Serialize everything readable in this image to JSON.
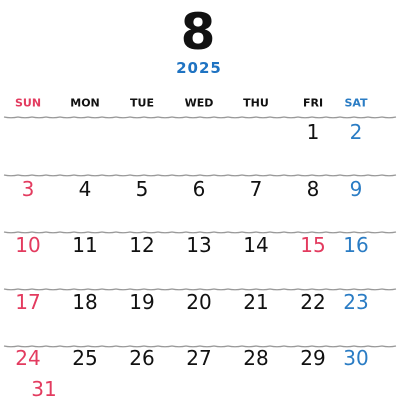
{
  "header": {
    "month": "8",
    "year": "2025"
  },
  "weekdays": [
    {
      "text": "SUN",
      "color": "#e33b5f"
    },
    {
      "text": "MON"
    },
    {
      "text": "TUE"
    },
    {
      "text": "WED"
    },
    {
      "text": "THU"
    },
    {
      "text": "FRI"
    },
    {
      "text": "SAT",
      "color": "#2a7cc4"
    }
  ],
  "weeks": [
    [
      null,
      null,
      null,
      null,
      null,
      {
        "text": "1"
      },
      {
        "text": "2",
        "color": "#2a7cc4"
      }
    ],
    [
      {
        "text": "3",
        "color": "#e33b5f"
      },
      {
        "text": "4"
      },
      {
        "text": "5"
      },
      {
        "text": "6"
      },
      {
        "text": "7"
      },
      {
        "text": "8"
      },
      {
        "text": "9",
        "color": "#2a7cc4"
      }
    ],
    [
      {
        "text": "10",
        "color": "#e33b5f"
      },
      {
        "text": "11"
      },
      {
        "text": "12"
      },
      {
        "text": "13"
      },
      {
        "text": "14"
      },
      {
        "text": "15",
        "color": "#e33b5f"
      },
      {
        "text": "16",
        "color": "#2a7cc4"
      }
    ],
    [
      {
        "text": "17",
        "color": "#e33b5f"
      },
      {
        "text": "18"
      },
      {
        "text": "19"
      },
      {
        "text": "20"
      },
      {
        "text": "21"
      },
      {
        "text": "22"
      },
      {
        "text": "23",
        "color": "#2a7cc4"
      }
    ],
    [
      {
        "text": "24",
        "color": "#e33b5f"
      },
      {
        "text": "25"
      },
      {
        "text": "26"
      },
      {
        "text": "27"
      },
      {
        "text": "28"
      },
      {
        "text": "29"
      },
      {
        "text": "30",
        "color": "#2a7cc4"
      }
    ],
    [
      {
        "text": "31",
        "color": "#e33b5f"
      }
    ]
  ]
}
